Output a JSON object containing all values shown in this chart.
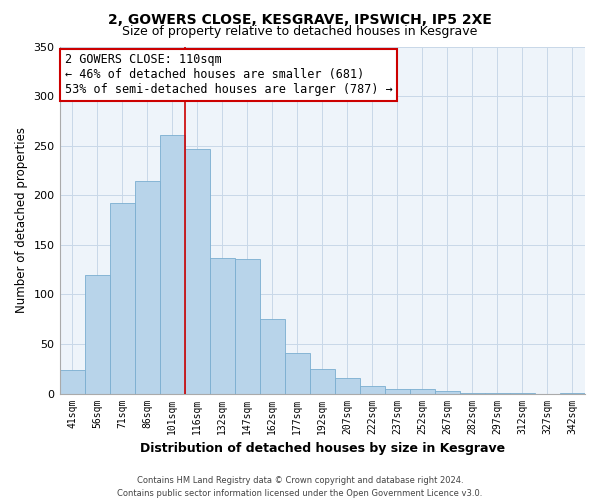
{
  "title": "2, GOWERS CLOSE, KESGRAVE, IPSWICH, IP5 2XE",
  "subtitle": "Size of property relative to detached houses in Kesgrave",
  "xlabel": "Distribution of detached houses by size in Kesgrave",
  "ylabel": "Number of detached properties",
  "categories": [
    "41sqm",
    "56sqm",
    "71sqm",
    "86sqm",
    "101sqm",
    "116sqm",
    "132sqm",
    "147sqm",
    "162sqm",
    "177sqm",
    "192sqm",
    "207sqm",
    "222sqm",
    "237sqm",
    "252sqm",
    "267sqm",
    "282sqm",
    "297sqm",
    "312sqm",
    "327sqm",
    "342sqm"
  ],
  "bar_heights": [
    24,
    120,
    192,
    214,
    261,
    247,
    137,
    136,
    75,
    41,
    25,
    16,
    8,
    5,
    5,
    3,
    1,
    1,
    1,
    0,
    1
  ],
  "bar_color": "#b8d4ea",
  "bar_edge_color": "#7aaed0",
  "vline_color": "#cc0000",
  "annotation_title": "2 GOWERS CLOSE: 110sqm",
  "annotation_line1": "← 46% of detached houses are smaller (681)",
  "annotation_line2": "53% of semi-detached houses are larger (787) →",
  "annotation_box_color": "#ffffff",
  "annotation_box_edge": "#cc0000",
  "ylim": [
    0,
    350
  ],
  "yticks": [
    0,
    50,
    100,
    150,
    200,
    250,
    300,
    350
  ],
  "footnote1": "Contains HM Land Registry data © Crown copyright and database right 2024.",
  "footnote2": "Contains public sector information licensed under the Open Government Licence v3.0."
}
